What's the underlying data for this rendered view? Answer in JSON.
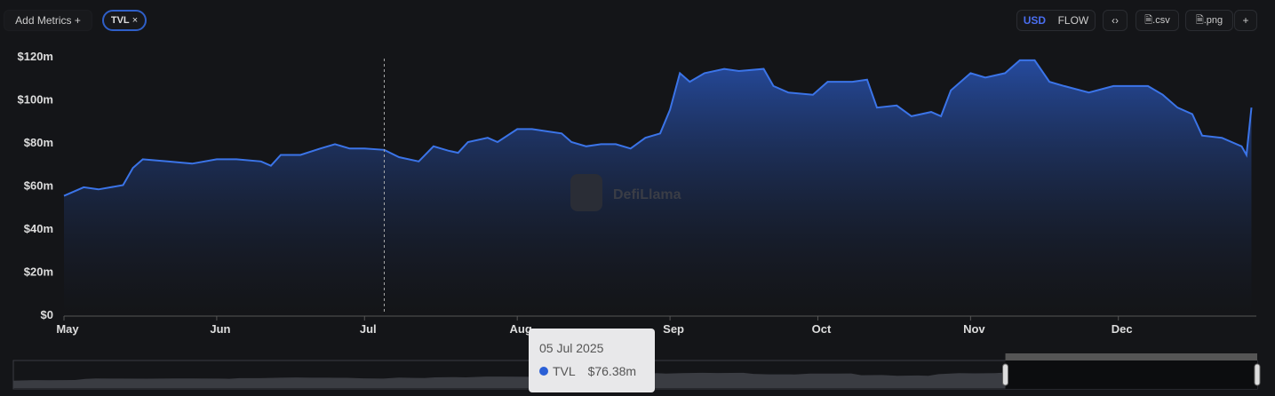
{
  "toolbar": {
    "add_metrics": "Add Metrics",
    "add_icon": "plus-icon",
    "metric_pill": "TVL",
    "remove_icon": "close-icon",
    "usd": "USD",
    "flow": "FLOW",
    "embed_icon": "code-icon",
    "csv": ".csv",
    "png": ".png",
    "csv_icon": "file-icon",
    "more": "+"
  },
  "watermark": "DefiLlama",
  "tooltip": {
    "date": "05 Jul 2025",
    "series": "TVL",
    "value": "$76.38m"
  },
  "colors": {
    "line": "#3b74e8",
    "accent": "#4a6ef0"
  },
  "chart_data": {
    "type": "area",
    "ylim": [
      0,
      120
    ],
    "yticks": [
      "$0",
      "$20m",
      "$40m",
      "$60m",
      "$80m",
      "$100m",
      "$120m"
    ],
    "ytick_values": [
      0,
      20,
      40,
      60,
      80,
      100,
      120
    ],
    "xticks": [
      "May",
      "Jun",
      "Jul",
      "Aug",
      "Sep",
      "Oct",
      "Nov",
      "Dec"
    ],
    "xtick_dates": [
      "2025-05-01",
      "2025-06-01",
      "2025-07-01",
      "2025-08-01",
      "2025-09-01",
      "2025-10-01",
      "2025-11-01",
      "2025-12-01"
    ],
    "xlim": [
      "2025-05-01",
      "2025-12-29"
    ],
    "crosshair_date": "2025-07-05",
    "series": [
      {
        "name": "TVL",
        "unit": "$m",
        "points": [
          [
            "2025-05-01",
            55
          ],
          [
            "2025-05-05",
            59
          ],
          [
            "2025-05-08",
            58
          ],
          [
            "2025-05-13",
            60
          ],
          [
            "2025-05-15",
            68
          ],
          [
            "2025-05-17",
            72
          ],
          [
            "2025-05-22",
            71
          ],
          [
            "2025-05-27",
            70
          ],
          [
            "2025-06-01",
            72
          ],
          [
            "2025-06-05",
            72
          ],
          [
            "2025-06-10",
            71
          ],
          [
            "2025-06-12",
            69
          ],
          [
            "2025-06-14",
            74
          ],
          [
            "2025-06-18",
            74
          ],
          [
            "2025-06-22",
            77
          ],
          [
            "2025-06-25",
            79
          ],
          [
            "2025-06-28",
            77
          ],
          [
            "2025-07-01",
            77
          ],
          [
            "2025-07-05",
            76.38
          ],
          [
            "2025-07-08",
            73
          ],
          [
            "2025-07-12",
            71
          ],
          [
            "2025-07-15",
            78
          ],
          [
            "2025-07-18",
            76
          ],
          [
            "2025-07-20",
            75
          ],
          [
            "2025-07-22",
            80
          ],
          [
            "2025-07-26",
            82
          ],
          [
            "2025-07-28",
            80
          ],
          [
            "2025-08-01",
            86
          ],
          [
            "2025-08-04",
            86
          ],
          [
            "2025-08-07",
            85
          ],
          [
            "2025-08-10",
            84
          ],
          [
            "2025-08-12",
            80
          ],
          [
            "2025-08-15",
            78
          ],
          [
            "2025-08-18",
            79
          ],
          [
            "2025-08-21",
            79
          ],
          [
            "2025-08-24",
            77
          ],
          [
            "2025-08-27",
            82
          ],
          [
            "2025-08-30",
            84
          ],
          [
            "2025-09-01",
            95
          ],
          [
            "2025-09-03",
            112
          ],
          [
            "2025-09-05",
            108
          ],
          [
            "2025-09-08",
            112
          ],
          [
            "2025-09-12",
            114
          ],
          [
            "2025-09-15",
            113
          ],
          [
            "2025-09-20",
            114
          ],
          [
            "2025-09-22",
            106
          ],
          [
            "2025-09-25",
            103
          ],
          [
            "2025-09-30",
            102
          ],
          [
            "2025-10-03",
            108
          ],
          [
            "2025-10-08",
            108
          ],
          [
            "2025-10-11",
            109
          ],
          [
            "2025-10-13",
            96
          ],
          [
            "2025-10-17",
            97
          ],
          [
            "2025-10-20",
            92
          ],
          [
            "2025-10-24",
            94
          ],
          [
            "2025-10-26",
            92
          ],
          [
            "2025-10-28",
            104
          ],
          [
            "2025-11-01",
            112
          ],
          [
            "2025-11-04",
            110
          ],
          [
            "2025-11-08",
            112
          ],
          [
            "2025-11-11",
            118
          ],
          [
            "2025-11-14",
            118
          ],
          [
            "2025-11-17",
            108
          ],
          [
            "2025-11-20",
            106
          ],
          [
            "2025-11-25",
            103
          ],
          [
            "2025-11-30",
            106
          ],
          [
            "2025-12-03",
            106
          ],
          [
            "2025-12-07",
            106
          ],
          [
            "2025-12-10",
            102
          ],
          [
            "2025-12-13",
            96
          ],
          [
            "2025-12-16",
            93
          ],
          [
            "2025-12-18",
            83
          ],
          [
            "2025-12-22",
            82
          ],
          [
            "2025-12-26",
            78
          ],
          [
            "2025-12-27",
            74
          ],
          [
            "2025-12-28",
            96
          ]
        ]
      }
    ],
    "grid": false,
    "brush_range": [
      "2025-11-10",
      "2025-12-29"
    ]
  }
}
